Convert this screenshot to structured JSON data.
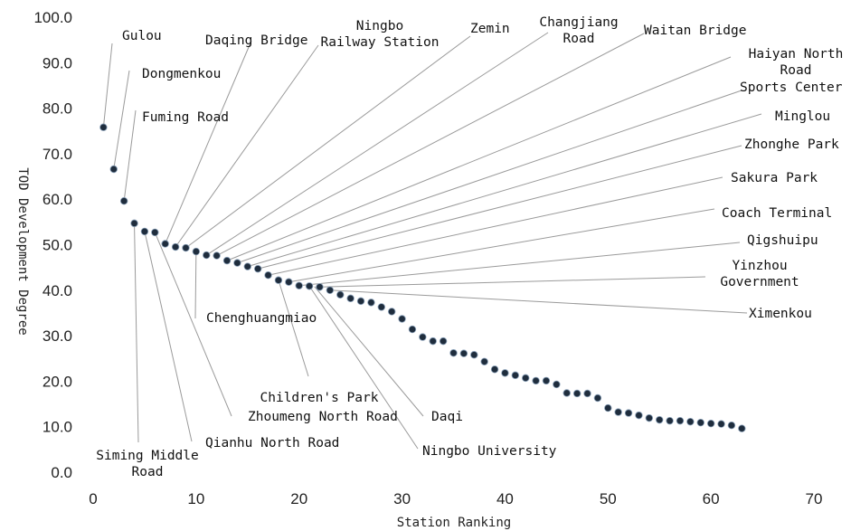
{
  "chart_data": {
    "type": "scatter",
    "title": "",
    "xlabel": "Station Ranking",
    "ylabel": "TOD Development Degree",
    "xlim": [
      0,
      70
    ],
    "ylim": [
      0,
      100
    ],
    "xticks": [
      "0",
      "10",
      "20",
      "30",
      "40",
      "50",
      "60",
      "70"
    ],
    "yticks": [
      "0.0",
      "10.0",
      "20.0",
      "30.0",
      "40.0",
      "50.0",
      "60.0",
      "70.0",
      "80.0",
      "90.0",
      "100.0"
    ],
    "grid": false,
    "legend": "none",
    "marker_color": "#1f2d3d",
    "series": [
      {
        "x": [
          1,
          2,
          3,
          4,
          5,
          6,
          7,
          8,
          9,
          10,
          11,
          12,
          13,
          14,
          15,
          16,
          17,
          18,
          19,
          20,
          21,
          22,
          23,
          24,
          25,
          26,
          27,
          28,
          29,
          30,
          31,
          32,
          33,
          34,
          35,
          36,
          37,
          38,
          39,
          40,
          41,
          42,
          43,
          44,
          45,
          46,
          47,
          48,
          49,
          50,
          51,
          52,
          53,
          54,
          55,
          56,
          57,
          58,
          59,
          60,
          61,
          62,
          63
        ],
        "y": [
          75.8,
          66.6,
          59.6,
          54.7,
          52.9,
          52.7,
          50.2,
          49.5,
          49.3,
          48.5,
          47.7,
          47.6,
          46.5,
          46.0,
          45.2,
          44.7,
          43.3,
          42.2,
          41.8,
          41.0,
          40.9,
          40.7,
          40.0,
          39.0,
          38.2,
          37.6,
          37.3,
          36.3,
          35.3,
          33.7,
          31.4,
          29.7,
          28.8,
          28.8,
          26.2,
          26.1,
          25.8,
          24.3,
          22.6,
          21.8,
          21.3,
          20.7,
          20.1,
          20.1,
          19.3,
          17.4,
          17.3,
          17.3,
          16.3,
          14.1,
          13.2,
          13.0,
          12.5,
          11.9,
          11.5,
          11.3,
          11.3,
          11.1,
          10.9,
          10.7,
          10.6,
          10.3,
          9.6
        ]
      }
    ],
    "annotations": [
      {
        "lines": [
          "Gulou"
        ],
        "x": 1,
        "y": 75.8
      },
      {
        "lines": [
          "Dongmenkou"
        ],
        "x": 2,
        "y": 66.6
      },
      {
        "lines": [
          "Fuming Road"
        ],
        "x": 3,
        "y": 59.6
      },
      {
        "lines": [
          "Siming Middle",
          "Road"
        ],
        "x": 4,
        "y": 54.7
      },
      {
        "lines": [
          "Qianhu North Road"
        ],
        "x": 5,
        "y": 52.9
      },
      {
        "lines": [
          "Zhoumeng North Road"
        ],
        "x": 6,
        "y": 52.7
      },
      {
        "lines": [
          "Daqing Bridge"
        ],
        "x": 7,
        "y": 50.2
      },
      {
        "lines": [
          "Ningbo",
          "Railway Station"
        ],
        "x": 8,
        "y": 49.5
      },
      {
        "lines": [
          "Zemin"
        ],
        "x": 9,
        "y": 49.3
      },
      {
        "lines": [
          "Chenghuangmiao"
        ],
        "x": 10,
        "y": 48.5
      },
      {
        "lines": [
          "Changjiang",
          "Road"
        ],
        "x": 11,
        "y": 47.7
      },
      {
        "lines": [
          "Waitan Bridge"
        ],
        "x": 12,
        "y": 47.6
      },
      {
        "lines": [
          "Haiyan North",
          "Road"
        ],
        "x": 13,
        "y": 46.5
      },
      {
        "lines": [
          "Sports Center"
        ],
        "x": 14,
        "y": 46.0
      },
      {
        "lines": [
          "Minglou"
        ],
        "x": 15,
        "y": 45.2
      },
      {
        "lines": [
          "Zhonghe Park"
        ],
        "x": 16,
        "y": 44.7
      },
      {
        "lines": [
          "Sakura Park"
        ],
        "x": 17,
        "y": 43.3
      },
      {
        "lines": [
          "Children's Park"
        ],
        "x": 18,
        "y": 42.2
      },
      {
        "lines": [
          "Coach Terminal"
        ],
        "x": 19,
        "y": 41.8
      },
      {
        "lines": [
          "Qigshuipu"
        ],
        "x": 20,
        "y": 41.0
      },
      {
        "lines": [
          "Ningbo University"
        ],
        "x": 21,
        "y": 40.9
      },
      {
        "lines": [
          "Daqi"
        ],
        "x": 21.5,
        "y": 40.8
      },
      {
        "lines": [
          "Yinzhou",
          "Government"
        ],
        "x": 22,
        "y": 40.7
      },
      {
        "lines": [
          "Ximenkou"
        ],
        "x": 23,
        "y": 40.0
      }
    ]
  }
}
